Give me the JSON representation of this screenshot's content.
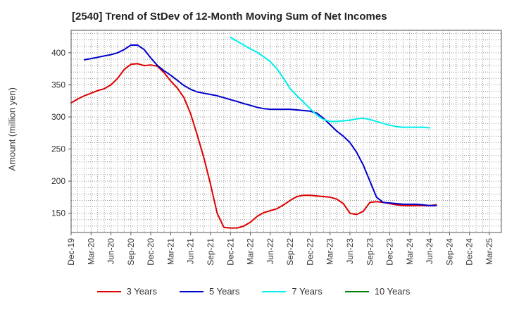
{
  "chart_data": {
    "type": "line",
    "title": "[2540]  Trend of StDev of 12-Month Moving Sum of Net Incomes",
    "ylabel": "Amount (million yen)",
    "xlabel": "",
    "x_tick_labels": [
      "Dec-19",
      "Mar-20",
      "Jun-20",
      "Sep-20",
      "Dec-20",
      "Mar-21",
      "Jun-21",
      "Sep-21",
      "Dec-21",
      "Mar-22",
      "Jun-22",
      "Sep-22",
      "Dec-22",
      "Mar-23",
      "Jun-23",
      "Sep-23",
      "Dec-23",
      "Mar-24",
      "Jun-24",
      "Sep-24",
      "Dec-24",
      "Mar-25"
    ],
    "y_ticks": [
      150,
      200,
      250,
      300,
      350,
      400
    ],
    "ylim": [
      120,
      435
    ],
    "grid": true,
    "legend_position": "bottom",
    "series": [
      {
        "name": "3 Years",
        "color": "#dd0000",
        "values": [
          322,
          328,
          333,
          337,
          341,
          344,
          350,
          360,
          374,
          382,
          383,
          380,
          381,
          379,
          369,
          356,
          345,
          330,
          305,
          272,
          236,
          195,
          150,
          128,
          127,
          127,
          130,
          136,
          145,
          151,
          154,
          157,
          163,
          170,
          176,
          178,
          178,
          177,
          176,
          175,
          172,
          165,
          150,
          148,
          153,
          167,
          168,
          167,
          165,
          163,
          162,
          162,
          162,
          162,
          162,
          163
        ]
      },
      {
        "name": "5 Years",
        "color": "#0000cc",
        "values": [
          null,
          null,
          389,
          391,
          393,
          395,
          397,
          400,
          405,
          412,
          412,
          405,
          392,
          380,
          372,
          365,
          357,
          349,
          343,
          339,
          337,
          335,
          333,
          330,
          327,
          324,
          321,
          318,
          315,
          313,
          312,
          312,
          312,
          312,
          311,
          310,
          309,
          306,
          298,
          288,
          278,
          270,
          260,
          245,
          225,
          200,
          175,
          167,
          166,
          165,
          164,
          164,
          164,
          163,
          162,
          162
        ]
      },
      {
        "name": "7 Years",
        "color": "#00eeee",
        "values": [
          null,
          null,
          null,
          null,
          null,
          null,
          null,
          null,
          null,
          null,
          null,
          null,
          null,
          null,
          null,
          null,
          null,
          null,
          null,
          null,
          null,
          null,
          null,
          null,
          424,
          418,
          412,
          406,
          401,
          394,
          386,
          375,
          360,
          344,
          333,
          323,
          313,
          303,
          296,
          293,
          293,
          294,
          295,
          297,
          298,
          296,
          293,
          290,
          287,
          285,
          284,
          284,
          284,
          284,
          283,
          null
        ]
      },
      {
        "name": "10 Years",
        "color": "#008000",
        "values": []
      }
    ]
  }
}
